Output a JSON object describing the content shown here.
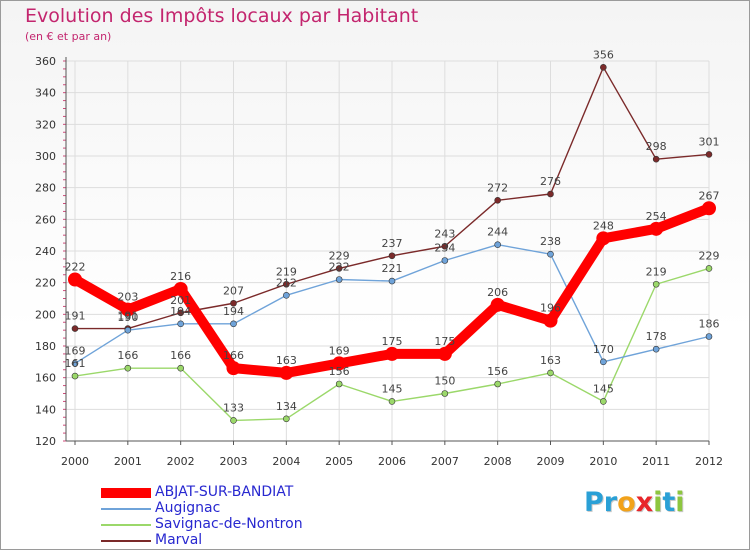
{
  "title": "Evolution des Impôts locaux par Habitant",
  "subtitle": "(en € et par an)",
  "logo": {
    "text": "Proxiti",
    "letters": [
      {
        "char": "P",
        "color": "#2aa0d6"
      },
      {
        "char": "r",
        "color": "#2aa0d6"
      },
      {
        "char": "o",
        "color": "#f2a21a"
      },
      {
        "char": "x",
        "color": "#e8262a"
      },
      {
        "char": "i",
        "color": "#8dc63f"
      },
      {
        "char": "t",
        "color": "#2aa0d6"
      },
      {
        "char": "i",
        "color": "#8dc63f"
      }
    ]
  },
  "chart_data": {
    "type": "line",
    "title": "Evolution des Impôts locaux par Habitant",
    "subtitle": "(en € et par an)",
    "xlabel": "",
    "ylabel": "",
    "ylim": [
      120,
      360
    ],
    "yticks": [
      120,
      140,
      160,
      180,
      200,
      220,
      240,
      260,
      280,
      300,
      320,
      340,
      360
    ],
    "grid": true,
    "legend_position": "bottom-left",
    "categories": [
      "2000",
      "2001",
      "2002",
      "2003",
      "2004",
      "2005",
      "2006",
      "2007",
      "2008",
      "2009",
      "2010",
      "2011",
      "2012"
    ],
    "series": [
      {
        "name": "ABJAT-SUR-BANDIAT",
        "color": "#ff0000",
        "values": [
          222,
          203,
          216,
          166,
          163,
          169,
          175,
          175,
          206,
          196,
          248,
          254,
          267
        ]
      },
      {
        "name": "Augignac",
        "color": "#6fa3d9",
        "values": [
          169,
          190,
          194,
          194,
          212,
          222,
          221,
          234,
          244,
          238,
          170,
          178,
          186
        ]
      },
      {
        "name": "Savignac-de-Nontron",
        "color": "#9bd86a",
        "values": [
          161,
          166,
          166,
          133,
          134,
          156,
          145,
          150,
          156,
          163,
          145,
          219,
          229
        ]
      },
      {
        "name": "Marval",
        "color": "#7b2a2a",
        "values": [
          191,
          191,
          201,
          207,
          219,
          229,
          237,
          243,
          272,
          276,
          356,
          298,
          301
        ]
      }
    ]
  }
}
